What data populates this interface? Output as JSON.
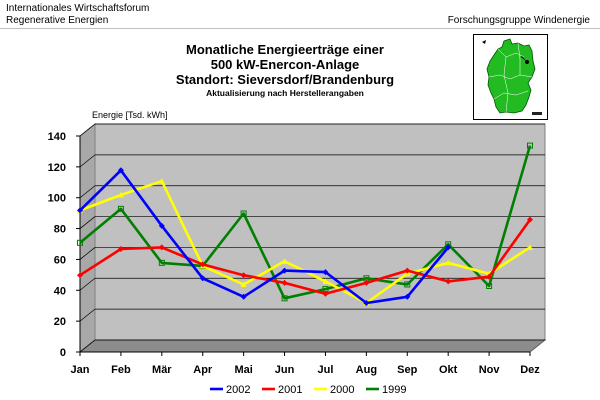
{
  "header": {
    "left_line1": "Internationales Wirtschaftsforum",
    "left_line2": "Regenerative Energien",
    "right": "Forschungsgruppe Windenergie"
  },
  "chart_data": {
    "type": "line",
    "title_lines": [
      "Monatliche Energieerträge einer",
      "500 kW-Enercon-Anlage",
      "Standort: Sieversdorf/Brandenburg"
    ],
    "subtitle": "Aktualisierung nach Herstellerangaben",
    "ylabel": "Energie [Tsd. kWh]",
    "xlabel": "",
    "ylim": [
      0,
      140
    ],
    "yticks": [
      0,
      20,
      40,
      60,
      80,
      100,
      120,
      140
    ],
    "grid": true,
    "legend_position": "bottom",
    "categories": [
      "Jan",
      "Feb",
      "Mär",
      "Apr",
      "Mai",
      "Jun",
      "Jul",
      "Aug",
      "Sep",
      "Okt",
      "Nov",
      "Dez"
    ],
    "series": [
      {
        "name": "2002",
        "color": "#0000ff",
        "marker": "diamond",
        "values": [
          84,
          110,
          74,
          40,
          28,
          45,
          44,
          24,
          28,
          60,
          null,
          null
        ]
      },
      {
        "name": "2001",
        "color": "#ff0000",
        "marker": "diamond",
        "values": [
          42,
          59,
          60,
          49,
          42,
          37,
          30,
          37,
          45,
          38,
          41,
          78
        ]
      },
      {
        "name": "2000",
        "color": "#ffff00",
        "marker": "triangle",
        "values": [
          84,
          94,
          103,
          48,
          36,
          51,
          38,
          24,
          43,
          50,
          43,
          60
        ]
      },
      {
        "name": "1999",
        "color": "#008000",
        "marker": "square",
        "values": [
          63,
          85,
          50,
          48,
          82,
          27,
          33,
          40,
          36,
          62,
          35,
          126
        ]
      }
    ]
  }
}
